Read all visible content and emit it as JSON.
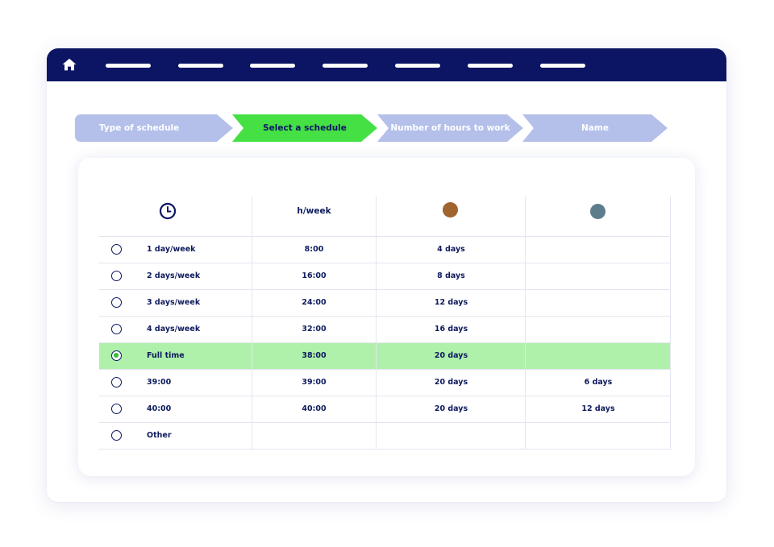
{
  "colors": {
    "topbar": "#0c1563",
    "step_inactive": "#b4c0ea",
    "step_active": "#44e044",
    "selected_row": "#aff0ab",
    "dot_brown": "#a0642e",
    "dot_slate": "#5e7d8c"
  },
  "nav": {
    "home_icon": "home-icon",
    "item_count": 7
  },
  "stepper": {
    "steps": [
      {
        "label": "Type of schedule",
        "active": false
      },
      {
        "label": "Select a schedule",
        "active": true
      },
      {
        "label": "Number of hours to work",
        "active": false
      },
      {
        "label": "Name",
        "active": false
      }
    ]
  },
  "table": {
    "header": {
      "col0_icon": "clock-icon",
      "col1": "h/week",
      "col2_icon": "brown-circle-icon",
      "col3_icon": "slate-circle-icon"
    },
    "rows": [
      {
        "label": "1 day/week",
        "hours": "8:00",
        "days": "4 days",
        "extra": "",
        "selected": false
      },
      {
        "label": "2 days/week",
        "hours": "16:00",
        "days": "8 days",
        "extra": "",
        "selected": false
      },
      {
        "label": "3 days/week",
        "hours": "24:00",
        "days": "12 days",
        "extra": "",
        "selected": false
      },
      {
        "label": "4 days/week",
        "hours": "32:00",
        "days": "16 days",
        "extra": "",
        "selected": false
      },
      {
        "label": "Full time",
        "hours": "38:00",
        "days": "20 days",
        "extra": "",
        "selected": true
      },
      {
        "label": "39:00",
        "hours": "39:00",
        "days": "20 days",
        "extra": "6 days",
        "selected": false
      },
      {
        "label": "40:00",
        "hours": "40:00",
        "days": "20 days",
        "extra": "12 days",
        "selected": false
      },
      {
        "label": "Other",
        "hours": "",
        "days": "",
        "extra": "",
        "selected": false
      }
    ]
  }
}
